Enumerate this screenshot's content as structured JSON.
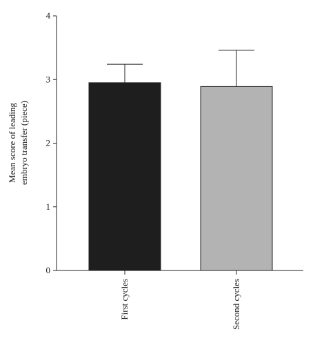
{
  "chart_data": {
    "type": "bar",
    "categories": [
      "First cycles",
      "Second cycles"
    ],
    "values": [
      2.95,
      2.89
    ],
    "error_upper": [
      3.24,
      3.46
    ],
    "bar_colors": [
      "#1e1e1e",
      "#b3b3b3"
    ],
    "ylabel_lines": [
      "Mean score of leading",
      "embryo transfer (piece)"
    ],
    "xlabel": "",
    "title": "",
    "ylim": [
      0,
      4
    ],
    "yticks": [
      0,
      1,
      2,
      3,
      4
    ],
    "grid": false,
    "legend": "none"
  }
}
